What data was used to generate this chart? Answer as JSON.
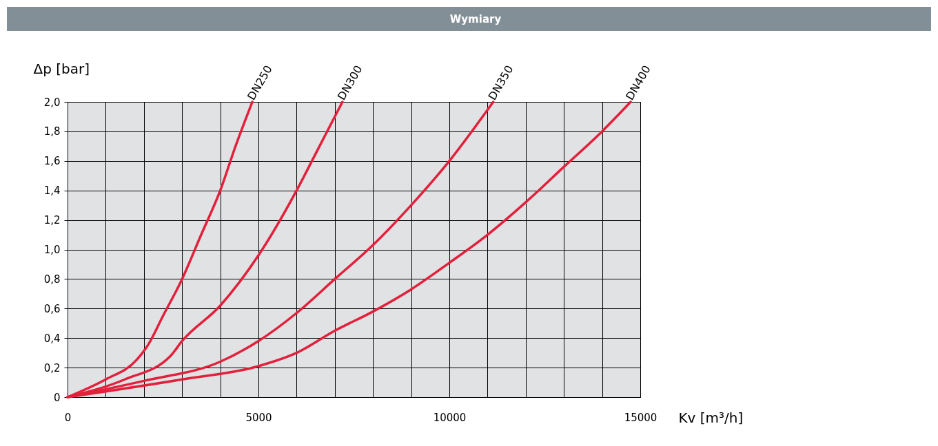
{
  "chart_data": {
    "type": "line",
    "title": "Wymiary",
    "xlabel": "Kv [m³/h]",
    "ylabel": "Δp [bar]",
    "xlim": [
      0,
      15000
    ],
    "ylim": [
      0,
      2.0
    ],
    "xticks": [
      0,
      {
        "value": 1000,
        "label": null
      },
      {
        "value": 2000,
        "label": null
      },
      {
        "value": 3000,
        "label": null
      },
      {
        "value": 4000,
        "label": null
      },
      5000,
      {
        "value": 6000,
        "label": null
      },
      {
        "value": 7000,
        "label": null
      },
      {
        "value": 8000,
        "label": null
      },
      {
        "value": 9000,
        "label": null
      },
      10000,
      {
        "value": 11000,
        "label": null
      },
      {
        "value": 12000,
        "label": null
      },
      {
        "value": 13000,
        "label": null
      },
      {
        "value": 14000,
        "label": null
      },
      15000
    ],
    "yticks": [
      0,
      {
        "value": 0.2,
        "label": "0,2"
      },
      {
        "value": 0.4,
        "label": "0,4"
      },
      {
        "value": 0.6,
        "label": "0,6"
      },
      {
        "value": 0.8,
        "label": "0,8"
      },
      {
        "value": 1.0,
        "label": "1,0"
      },
      {
        "value": 1.2,
        "label": "1,2"
      },
      {
        "value": 1.4,
        "label": "1,4"
      },
      {
        "value": 1.6,
        "label": "1,6"
      },
      {
        "value": 1.8,
        "label": "1,8"
      },
      {
        "value": 2.0,
        "label": "2,0"
      }
    ],
    "grid": true,
    "legend": false,
    "marker": "none",
    "line_style": "solid",
    "series": [
      {
        "name": "DN250",
        "color": "#e3203b",
        "x": [
          0,
          1000,
          1800,
          2100,
          2500,
          3000,
          3500,
          4000,
          4400,
          4840
        ],
        "values": [
          0,
          0.12,
          0.25,
          0.35,
          0.55,
          0.8,
          1.1,
          1.4,
          1.7,
          2.0
        ]
      },
      {
        "name": "DN300",
        "color": "#e3203b",
        "x": [
          0,
          1500,
          2700,
          3000,
          4000,
          5000,
          6000,
          6500,
          7200
        ],
        "values": [
          0,
          0.12,
          0.28,
          0.38,
          0.62,
          0.96,
          1.4,
          1.65,
          2.0
        ]
      },
      {
        "name": "DN350",
        "color": "#e3203b",
        "x": [
          0,
          2000,
          4000,
          5000,
          6000,
          7000,
          8000,
          9000,
          10000,
          11150
        ],
        "values": [
          0,
          0.11,
          0.24,
          0.38,
          0.57,
          0.8,
          1.03,
          1.3,
          1.6,
          2.0
        ]
      },
      {
        "name": "DN400",
        "color": "#e3203b",
        "x": [
          0,
          3000,
          5000,
          6000,
          7000,
          8000,
          9000,
          10000,
          11000,
          12000,
          13000,
          14000,
          14750
        ],
        "values": [
          0,
          0.12,
          0.21,
          0.3,
          0.45,
          0.58,
          0.73,
          0.91,
          1.1,
          1.32,
          1.56,
          1.8,
          2.0
        ]
      }
    ]
  }
}
